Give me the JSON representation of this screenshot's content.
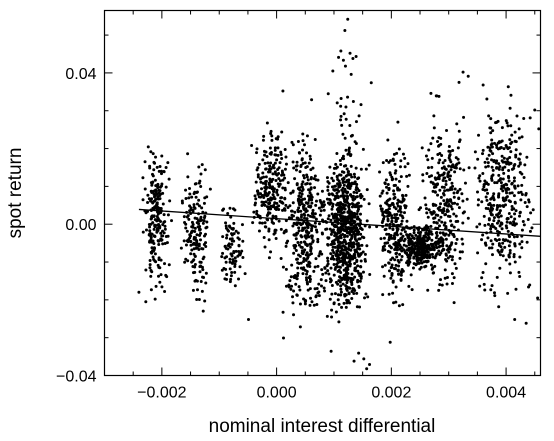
{
  "chart_data": {
    "type": "scatter",
    "title": "",
    "xlabel": "nominal interest differential",
    "ylabel": "spot return",
    "xlim": [
      -0.003,
      0.0046
    ],
    "ylim": [
      -0.04,
      0.0565
    ],
    "x_ticks": [
      {
        "value": -0.002,
        "label": "−0.002"
      },
      {
        "value": 0.0,
        "label": "0.000"
      },
      {
        "value": 0.002,
        "label": "0.002"
      },
      {
        "value": 0.004,
        "label": "0.004"
      }
    ],
    "y_ticks": [
      {
        "value": -0.04,
        "label": "−0.04"
      },
      {
        "value": 0.0,
        "label": "0.00"
      },
      {
        "value": 0.04,
        "label": "0.04"
      }
    ],
    "x_minor_step": 0.0005,
    "y_minor_step": 0.01,
    "grid": false,
    "legend": "none",
    "regression_line": {
      "x": [
        -0.0024,
        0.0046
      ],
      "y": [
        0.0039,
        -0.0032
      ]
    },
    "clusters": [
      {
        "x": [
          -0.0024,
          -0.0018
        ],
        "y": [
          -0.021,
          0.025
        ],
        "count": 220
      },
      {
        "x": [
          -0.0017,
          -0.0011
        ],
        "y": [
          -0.027,
          0.022
        ],
        "count": 170
      },
      {
        "x": [
          -0.0011,
          -0.0005
        ],
        "y": [
          -0.022,
          0.008
        ],
        "count": 90
      },
      {
        "x": [
          -0.0005,
          0.0003
        ],
        "y": [
          -0.012,
          0.03
        ],
        "count": 230
      },
      {
        "x": [
          0.0,
          0.001
        ],
        "y": [
          -0.032,
          0.03
        ],
        "count": 380
      },
      {
        "x": [
          0.0007,
          0.0017
        ],
        "y": [
          -0.03,
          0.025
        ],
        "count": 620
      },
      {
        "x": [
          0.0009,
          0.0016
        ],
        "y": [
          -0.036,
          0.05
        ],
        "count": 120
      },
      {
        "x": [
          0.0017,
          0.0024
        ],
        "y": [
          -0.028,
          0.03
        ],
        "count": 280
      },
      {
        "x": [
          0.0021,
          0.0029
        ],
        "y": [
          -0.014,
          0.002
        ],
        "count": 260
      },
      {
        "x": [
          0.0024,
          0.0035
        ],
        "y": [
          -0.026,
          0.035
        ],
        "count": 320
      },
      {
        "x": [
          0.0033,
          0.0046
        ],
        "y": [
          -0.026,
          0.04
        ],
        "count": 380
      }
    ],
    "points": [
      [
        0.00124,
        0.0542
      ],
      [
        0.00119,
        0.0512
      ],
      [
        0.00112,
        0.0458
      ],
      [
        0.00128,
        0.0452
      ],
      [
        0.00108,
        0.0441
      ],
      [
        0.00133,
        0.0438
      ],
      [
        0.0012,
        0.0418
      ],
      [
        0.00098,
        0.0405
      ],
      [
        0.0013,
        0.0396
      ],
      [
        0.00325,
        0.0402
      ],
      [
        0.00334,
        0.0391
      ],
      [
        0.00318,
        0.0375
      ],
      [
        0.0036,
        0.0368
      ],
      [
        0.00269,
        0.0346
      ],
      [
        0.00283,
        0.0338
      ],
      [
        0.00011,
        0.0352
      ],
      [
        0.0009,
        0.0345
      ],
      [
        0.00061,
        0.0329
      ],
      [
        0.00165,
        0.0374
      ],
      [
        0.00157,
        -0.0382
      ],
      [
        0.00162,
        -0.0371
      ],
      [
        0.00152,
        -0.0356
      ],
      [
        0.00143,
        -0.0341
      ],
      [
        0.00095,
        -0.0336
      ],
      [
        0.00135,
        -0.0362
      ],
      [
        -0.00049,
        -0.0252
      ],
      [
        -0.0024,
        -0.018
      ],
      [
        -0.00228,
        -0.0205
      ],
      [
        0.00012,
        -0.0301
      ],
      [
        0.00198,
        -0.0312
      ],
      [
        0.00415,
        -0.0252
      ],
      [
        0.00435,
        -0.0262
      ],
      [
        0.00455,
        -0.0195
      ],
      [
        0.00457,
        0.0252
      ],
      [
        0.00442,
        0.0281
      ],
      [
        0.0045,
        0.0302
      ]
    ]
  }
}
